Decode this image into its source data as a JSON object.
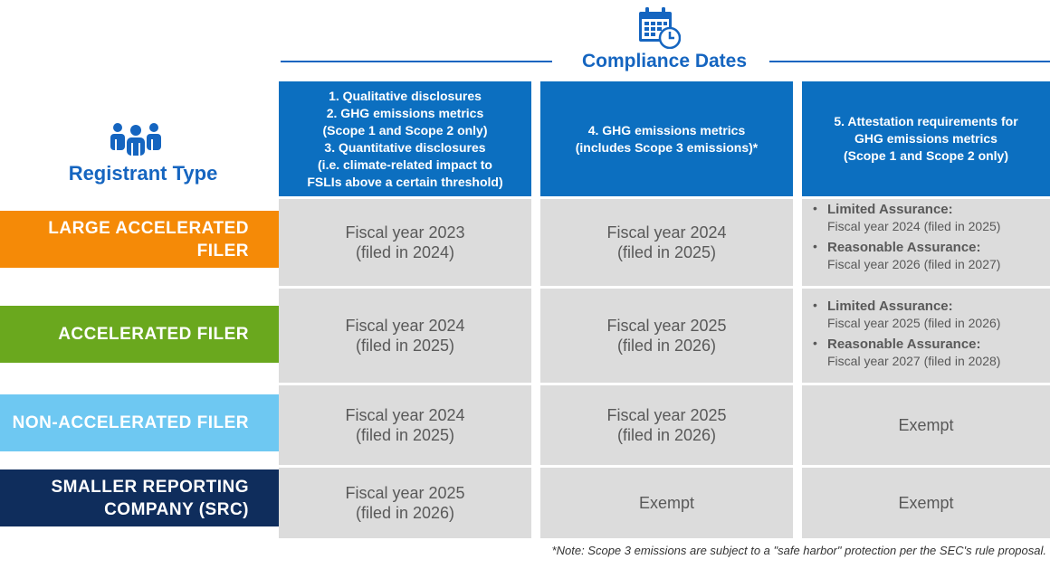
{
  "title": "Compliance Dates",
  "registrant_title": "Registrant Type",
  "columns": [
    "1. Qualitative disclosures\n2. GHG emissions metrics\n(Scope 1 and Scope 2 only)\n3. Quantitative disclosures\n(i.e. climate-related impact to\nFSLIs above a certain threshold)",
    "4. GHG emissions metrics\n(includes Scope 3 emissions)*",
    "5. Attestation requirements for\nGHG emissions metrics\n(Scope 1 and Scope 2 only)"
  ],
  "rows": [
    {
      "label": "LARGE ACCELERATED FILER",
      "color": "#f58a07",
      "col1": "Fiscal year 2023\n(filed in 2024)",
      "col2": "Fiscal year 2024\n(filed in 2025)",
      "att": [
        {
          "label": "Limited Assurance:",
          "value": "Fiscal year 2024 (filed in 2025)"
        },
        {
          "label": "Reasonable Assurance:",
          "value": "Fiscal year 2026 (filed in 2027)"
        }
      ]
    },
    {
      "label": "ACCELERATED FILER",
      "color": "#6aa81e",
      "col1": "Fiscal year 2024\n(filed in 2025)",
      "col2": "Fiscal year 2025\n(filed in 2026)",
      "att": [
        {
          "label": "Limited Assurance:",
          "value": "Fiscal year 2025 (filed in 2026)"
        },
        {
          "label": "Reasonable Assurance:",
          "value": "Fiscal year 2027 (filed in 2028)"
        }
      ]
    },
    {
      "label": "NON-ACCELERATED FILER",
      "color": "#6ec8f2",
      "col1": "Fiscal year 2024\n(filed in 2025)",
      "col2": "Fiscal year 2025\n(filed in 2026)",
      "col3": "Exempt"
    },
    {
      "label": "SMALLER REPORTING\nCOMPANY (SRC)",
      "color": "#0f2d5c",
      "col1": "Fiscal year 2025\n(filed in 2026)",
      "col2": "Exempt",
      "col3": "Exempt"
    }
  ],
  "note": "*Note: Scope 3 emissions are subject to a \"safe harbor\" protection per the SEC's rule proposal.",
  "icons": {
    "calendar": "calendar-clock-icon",
    "people": "people-group-icon"
  },
  "colors": {
    "primary": "#1565c0",
    "header_bg": "#0c6fc0",
    "cell_bg": "#dcdcdc"
  }
}
